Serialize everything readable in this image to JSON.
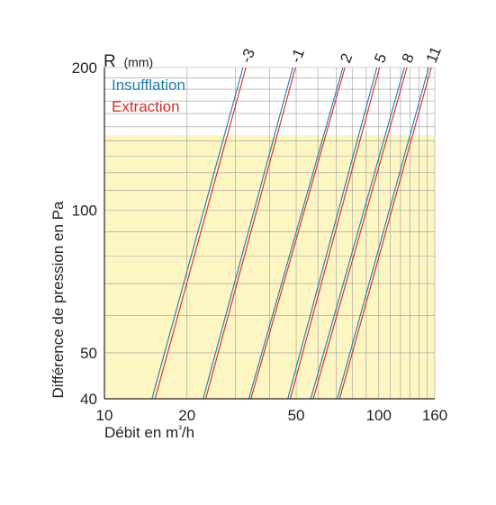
{
  "chart_data": {
    "type": "line",
    "title": "",
    "xlabel": "Débit en m³/h",
    "ylabel": "Différence de pression en Pa",
    "xscale": "log",
    "yscale": "log",
    "xlim": [
      10,
      160
    ],
    "ylim": [
      40,
      200
    ],
    "xticks": [
      10,
      20,
      50,
      100,
      160
    ],
    "yticks": [
      40,
      50,
      100,
      200
    ],
    "x_gridlines": [
      10,
      20,
      30,
      40,
      50,
      60,
      70,
      80,
      90,
      100,
      110,
      120,
      130,
      140,
      150,
      160
    ],
    "y_gridlines": [
      40,
      50,
      60,
      70,
      80,
      90,
      100,
      110,
      120,
      130,
      140,
      150,
      160,
      170,
      180,
      190,
      200
    ],
    "shaded_region": {
      "y_max": 144,
      "color": "#fdf6c3"
    },
    "legend": {
      "title": "R",
      "title_unit": "(mm)",
      "placement": "top-left",
      "entries": [
        {
          "name": "Insufflation",
          "color": "#1f7bb0"
        },
        {
          "name": "Extraction",
          "color": "#d42a2a"
        }
      ]
    },
    "r_values": [
      "-3",
      "-1",
      "2",
      "5",
      "8",
      "11"
    ],
    "series": [
      {
        "name": "Insufflation",
        "r": "-3",
        "color": "#1f7bb0",
        "points": [
          [
            14.9,
            40
          ],
          [
            32,
            200
          ]
        ]
      },
      {
        "name": "Extraction",
        "r": "-3",
        "color": "#d42a2a",
        "points": [
          [
            15.3,
            40
          ],
          [
            32.8,
            200
          ]
        ]
      },
      {
        "name": "Insufflation",
        "r": "-1",
        "color": "#1f7bb0",
        "points": [
          [
            22.9,
            40
          ],
          [
            48.6,
            200
          ]
        ]
      },
      {
        "name": "Extraction",
        "r": "-1",
        "color": "#d42a2a",
        "points": [
          [
            23.4,
            40
          ],
          [
            49.7,
            200
          ]
        ]
      },
      {
        "name": "Insufflation",
        "r": "2",
        "color": "#1f7bb0",
        "points": [
          [
            33.6,
            40
          ],
          [
            74,
            200
          ]
        ]
      },
      {
        "name": "Extraction",
        "r": "2",
        "color": "#d42a2a",
        "points": [
          [
            34.2,
            40
          ],
          [
            75.3,
            200
          ]
        ]
      },
      {
        "name": "Insufflation",
        "r": "5",
        "color": "#1f7bb0",
        "points": [
          [
            46.6,
            40
          ],
          [
            98.4,
            200
          ]
        ]
      },
      {
        "name": "Extraction",
        "r": "5",
        "color": "#d42a2a",
        "points": [
          [
            47.6,
            40
          ],
          [
            100.7,
            200
          ]
        ]
      },
      {
        "name": "Insufflation",
        "r": "8",
        "color": "#1f7bb0",
        "points": [
          [
            56.5,
            40
          ],
          [
            123.9,
            200
          ]
        ]
      },
      {
        "name": "Extraction",
        "r": "8",
        "color": "#d42a2a",
        "points": [
          [
            57.7,
            40
          ],
          [
            126.7,
            200
          ]
        ]
      },
      {
        "name": "Insufflation",
        "r": "11",
        "color": "#1f7bb0",
        "points": [
          [
            70.6,
            40
          ],
          [
            152,
            200
          ]
        ]
      },
      {
        "name": "Extraction",
        "r": "11",
        "color": "#d42a2a",
        "points": [
          [
            72,
            40
          ],
          [
            155.4,
            200
          ]
        ]
      }
    ],
    "colors": {
      "grid": "#9a9a9a",
      "axis": "#222222"
    }
  }
}
